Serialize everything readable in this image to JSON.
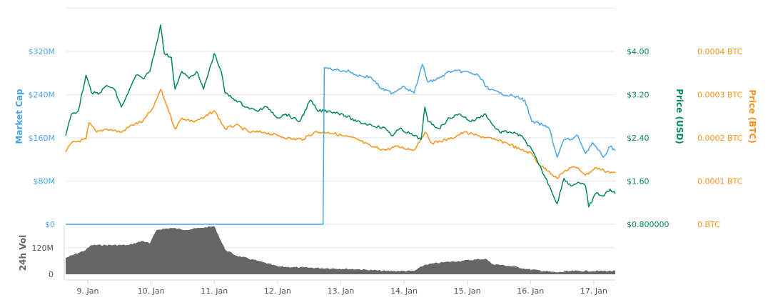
{
  "chart_data": {
    "type": "line",
    "colors": {
      "market_cap": "#4aa5e5",
      "price_usd": "#04875c",
      "price_btc": "#f7931a",
      "volume": "#666666",
      "grid": "#e6e6e6"
    },
    "axes": {
      "market_cap": {
        "label": "Market Cap",
        "ylim": [
          0,
          400
        ],
        "ticks": [
          0,
          80,
          160,
          240,
          320
        ],
        "tick_labels": [
          "$0",
          "$80M",
          "$160M",
          "$240M",
          "$320M"
        ]
      },
      "price_usd": {
        "label": "Price (USD)",
        "ylim": [
          0.8,
          4.8
        ],
        "ticks": [
          0.8,
          1.6,
          2.4,
          3.2,
          4.0
        ],
        "tick_labels": [
          "$0.800000",
          "$1.60",
          "$2.40",
          "$3.20",
          "$4.00"
        ]
      },
      "price_btc": {
        "label": "Price (BTC)",
        "ylim": [
          0,
          0.0005
        ],
        "ticks": [
          0,
          0.0001,
          0.0002,
          0.0003,
          0.0004
        ],
        "tick_labels": [
          "0 BTC",
          "0.0001 BTC",
          "0.0002 BTC",
          "0.0003 BTC",
          "0.0004 BTC"
        ]
      },
      "volume": {
        "label": "24h Vol",
        "ylim": [
          0,
          250
        ],
        "ticks": [
          0,
          120
        ],
        "tick_labels": [
          "0",
          "120M"
        ]
      },
      "x": {
        "xlim": [
          8.65,
          17.34
        ],
        "ticks": [
          9,
          10,
          11,
          12,
          13,
          14,
          15,
          16,
          17
        ],
        "tick_labels": [
          "9. Jan",
          "10. Jan",
          "11. Jan",
          "12. Jan",
          "13. Jan",
          "14. Jan",
          "15. Jan",
          "16. Jan",
          "17. Jan"
        ]
      }
    },
    "series": [
      {
        "name": "Market Cap",
        "axis": "market_cap",
        "unit": "M USD",
        "points": [
          [
            8.65,
            0
          ],
          [
            12.72,
            0
          ],
          [
            12.74,
            290
          ],
          [
            12.92,
            286
          ],
          [
            13.14,
            283
          ],
          [
            13.25,
            276
          ],
          [
            13.48,
            272
          ],
          [
            13.65,
            250
          ],
          [
            13.82,
            243
          ],
          [
            13.99,
            256
          ],
          [
            14.16,
            243
          ],
          [
            14.29,
            296
          ],
          [
            14.38,
            263
          ],
          [
            14.55,
            270
          ],
          [
            14.72,
            283
          ],
          [
            14.95,
            283
          ],
          [
            15.17,
            276
          ],
          [
            15.34,
            250
          ],
          [
            15.51,
            243
          ],
          [
            15.74,
            237
          ],
          [
            15.91,
            230
          ],
          [
            16.02,
            190
          ],
          [
            16.19,
            184
          ],
          [
            16.3,
            177
          ],
          [
            16.42,
            124
          ],
          [
            16.53,
            157
          ],
          [
            16.64,
            157
          ],
          [
            16.75,
            164
          ],
          [
            16.87,
            131
          ],
          [
            16.98,
            151
          ],
          [
            17.15,
            124
          ],
          [
            17.26,
            144
          ],
          [
            17.34,
            137
          ]
        ]
      },
      {
        "name": "Price (USD)",
        "axis": "price_usd",
        "unit": "USD",
        "points": [
          [
            8.65,
            2.44
          ],
          [
            8.74,
            2.84
          ],
          [
            8.85,
            2.9
          ],
          [
            8.97,
            3.56
          ],
          [
            9.06,
            3.23
          ],
          [
            9.19,
            3.23
          ],
          [
            9.3,
            3.37
          ],
          [
            9.42,
            3.3
          ],
          [
            9.53,
            2.97
          ],
          [
            9.64,
            3.23
          ],
          [
            9.76,
            3.56
          ],
          [
            9.87,
            3.5
          ],
          [
            9.98,
            3.63
          ],
          [
            10.09,
            4.16
          ],
          [
            10.15,
            4.49
          ],
          [
            10.21,
            3.96
          ],
          [
            10.32,
            3.89
          ],
          [
            10.38,
            3.3
          ],
          [
            10.49,
            3.63
          ],
          [
            10.6,
            3.5
          ],
          [
            10.72,
            3.63
          ],
          [
            10.83,
            3.3
          ],
          [
            11.0,
            3.96
          ],
          [
            11.11,
            3.63
          ],
          [
            11.17,
            3.23
          ],
          [
            11.34,
            3.1
          ],
          [
            11.51,
            2.97
          ],
          [
            11.67,
            2.9
          ],
          [
            11.84,
            2.97
          ],
          [
            12.01,
            2.77
          ],
          [
            12.13,
            2.84
          ],
          [
            12.35,
            2.7
          ],
          [
            12.52,
            3.1
          ],
          [
            12.63,
            2.9
          ],
          [
            12.8,
            2.9
          ],
          [
            13.03,
            2.84
          ],
          [
            13.25,
            2.7
          ],
          [
            13.48,
            2.64
          ],
          [
            13.71,
            2.57
          ],
          [
            13.82,
            2.44
          ],
          [
            13.93,
            2.57
          ],
          [
            14.16,
            2.44
          ],
          [
            14.27,
            2.37
          ],
          [
            14.33,
            2.97
          ],
          [
            14.38,
            2.7
          ],
          [
            14.55,
            2.57
          ],
          [
            14.72,
            2.77
          ],
          [
            14.89,
            2.84
          ],
          [
            15.06,
            2.7
          ],
          [
            15.29,
            2.84
          ],
          [
            15.4,
            2.64
          ],
          [
            15.51,
            2.51
          ],
          [
            15.68,
            2.51
          ],
          [
            15.85,
            2.44
          ],
          [
            16.02,
            2.18
          ],
          [
            16.13,
            1.91
          ],
          [
            16.3,
            1.51
          ],
          [
            16.42,
            1.18
          ],
          [
            16.53,
            1.65
          ],
          [
            16.64,
            1.51
          ],
          [
            16.75,
            1.58
          ],
          [
            16.87,
            1.51
          ],
          [
            16.92,
            1.12
          ],
          [
            17.04,
            1.38
          ],
          [
            17.15,
            1.32
          ],
          [
            17.26,
            1.45
          ],
          [
            17.34,
            1.36
          ]
        ]
      },
      {
        "name": "Price (BTC)",
        "axis": "price_btc",
        "unit": "BTC",
        "points": [
          [
            8.65,
            0.000167
          ],
          [
            8.74,
            0.000188
          ],
          [
            8.97,
            0.000197
          ],
          [
            9.02,
            0.000235
          ],
          [
            9.14,
            0.000213
          ],
          [
            9.3,
            0.000221
          ],
          [
            9.53,
            0.000213
          ],
          [
            9.7,
            0.00023
          ],
          [
            9.87,
            0.000238
          ],
          [
            10.04,
            0.000271
          ],
          [
            10.15,
            0.000312
          ],
          [
            10.26,
            0.000271
          ],
          [
            10.38,
            0.000221
          ],
          [
            10.49,
            0.000246
          ],
          [
            10.66,
            0.000238
          ],
          [
            10.83,
            0.000246
          ],
          [
            11.0,
            0.000263
          ],
          [
            11.17,
            0.000221
          ],
          [
            11.34,
            0.00023
          ],
          [
            11.56,
            0.000213
          ],
          [
            11.79,
            0.000213
          ],
          [
            12.01,
            0.000205
          ],
          [
            12.24,
            0.000197
          ],
          [
            12.41,
            0.000197
          ],
          [
            12.58,
            0.000213
          ],
          [
            12.8,
            0.000213
          ],
          [
            13.03,
            0.000205
          ],
          [
            13.25,
            0.000197
          ],
          [
            13.48,
            0.00018
          ],
          [
            13.71,
            0.000172
          ],
          [
            13.88,
            0.00018
          ],
          [
            14.16,
            0.000172
          ],
          [
            14.33,
            0.000213
          ],
          [
            14.44,
            0.000188
          ],
          [
            14.72,
            0.000197
          ],
          [
            14.95,
            0.000213
          ],
          [
            15.17,
            0.000205
          ],
          [
            15.4,
            0.000197
          ],
          [
            15.63,
            0.000188
          ],
          [
            15.85,
            0.000172
          ],
          [
            16.02,
            0.000164
          ],
          [
            16.13,
            0.000139
          ],
          [
            16.3,
            0.000122
          ],
          [
            16.42,
            0.000106
          ],
          [
            16.53,
            0.000122
          ],
          [
            16.64,
            0.000131
          ],
          [
            16.75,
            0.000131
          ],
          [
            16.87,
            0.000114
          ],
          [
            17.04,
            0.000131
          ],
          [
            17.21,
            0.000122
          ],
          [
            17.34,
            0.000119
          ]
        ]
      },
      {
        "name": "24h Vol",
        "axis": "volume",
        "unit": "M USD",
        "type": "area",
        "points": [
          [
            8.65,
            74
          ],
          [
            8.97,
            110
          ],
          [
            9.06,
            132
          ],
          [
            9.64,
            132
          ],
          [
            9.87,
            151
          ],
          [
            9.98,
            139
          ],
          [
            10.09,
            201
          ],
          [
            10.32,
            209
          ],
          [
            10.55,
            201
          ],
          [
            10.77,
            209
          ],
          [
            11.0,
            217
          ],
          [
            11.17,
            112
          ],
          [
            11.34,
            85
          ],
          [
            11.67,
            62
          ],
          [
            12.01,
            35
          ],
          [
            12.35,
            31
          ],
          [
            12.8,
            27
          ],
          [
            13.25,
            23
          ],
          [
            13.71,
            15
          ],
          [
            14.16,
            15
          ],
          [
            14.33,
            43
          ],
          [
            14.61,
            54
          ],
          [
            14.95,
            62
          ],
          [
            15.29,
            70
          ],
          [
            15.4,
            46
          ],
          [
            15.74,
            35
          ],
          [
            15.96,
            23
          ],
          [
            16.42,
            8
          ],
          [
            16.64,
            15
          ],
          [
            17.34,
            15
          ]
        ]
      }
    ]
  }
}
